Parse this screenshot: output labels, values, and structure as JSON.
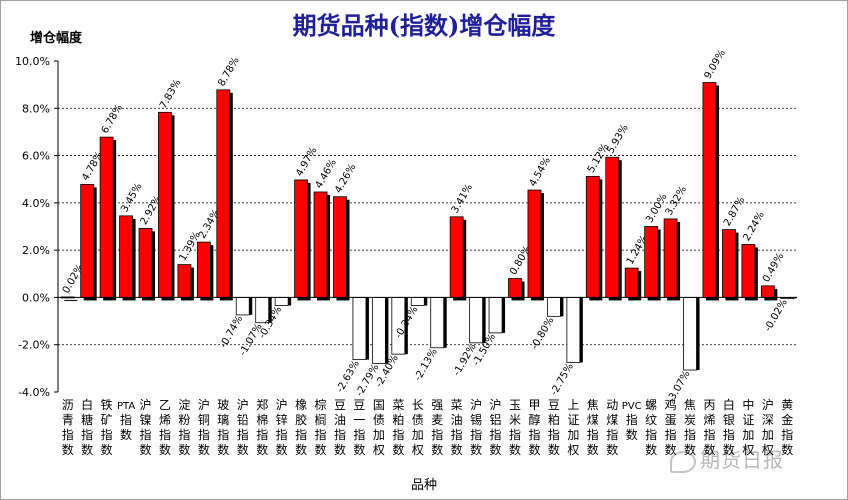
{
  "chart_data": {
    "type": "bar",
    "title": "期货品种(指数)增仓幅度",
    "ylabel": "增仓幅度",
    "xlabel": "品种",
    "ylim": [
      -4.0,
      10.0
    ],
    "y_ticks": [
      "10.0%",
      "8.0%",
      "6.0%",
      "4.0%",
      "2.0%",
      "0.0%",
      "-2.0%",
      "-4.0%"
    ],
    "grid": true,
    "positive_color": "#ff0000",
    "negative_color": "#ffffff",
    "categories": [
      "沥青指数",
      "白糖指数",
      "铁矿指数",
      "PTA指数",
      "沪镍指数",
      "乙烯指数",
      "淀粉指数",
      "沪铜指数",
      "玻璃指数",
      "沪铅指数",
      "郑棉指数",
      "沪锌指数",
      "橡胶指数",
      "棕榈指数",
      "豆油指数",
      "豆一指数",
      "国债加权",
      "菜粕指数",
      "长债加权",
      "强麦指数",
      "菜油指数",
      "沪锡指数",
      "沪铝指数",
      "玉米指数",
      "甲醇指数",
      "豆粕指数",
      "上证加权",
      "焦煤指数",
      "动煤指数",
      "PVC指数",
      "螺纹指数",
      "鸡蛋指数",
      "焦炭指数",
      "丙烯指数",
      "白银指数",
      "中证加权",
      "沪深加权",
      "黄金指数"
    ],
    "values": [
      0.02,
      4.78,
      6.78,
      3.45,
      2.92,
      7.83,
      1.39,
      2.34,
      8.78,
      -0.74,
      -1.07,
      -0.34,
      4.97,
      4.46,
      4.26,
      -2.63,
      -2.79,
      -2.4,
      -0.34,
      -2.13,
      3.41,
      -1.92,
      -1.5,
      0.8,
      4.54,
      -0.8,
      -2.75,
      5.12,
      5.93,
      1.24,
      3.0,
      3.32,
      -3.07,
      9.09,
      2.87,
      2.24,
      0.49,
      -0.02
    ],
    "data_labels": [
      "0.02%",
      "4.78%",
      "6.78%",
      "3.45%",
      "2.92%",
      "7.83%",
      "1.39%",
      "2.34%",
      "8.78%",
      "-0.74%",
      "-1.07%",
      "-0.34%",
      "4.97%",
      "4.46%",
      "4.26%",
      "-2.63%",
      "-2.79%",
      "-2.40%",
      "-0.34%",
      "-2.13%",
      "3.41%",
      "-1.92%",
      "-1.50%",
      "0.80%",
      "4.54%",
      "-0.80%",
      "-2.75%",
      "5.12%",
      "5.93%",
      "1.24%",
      "3.00%",
      "3.32%",
      "-3.07%",
      "9.09%",
      "2.87%",
      "2.24%",
      "0.49%",
      "-0.02%"
    ]
  },
  "watermark": "期货日报"
}
